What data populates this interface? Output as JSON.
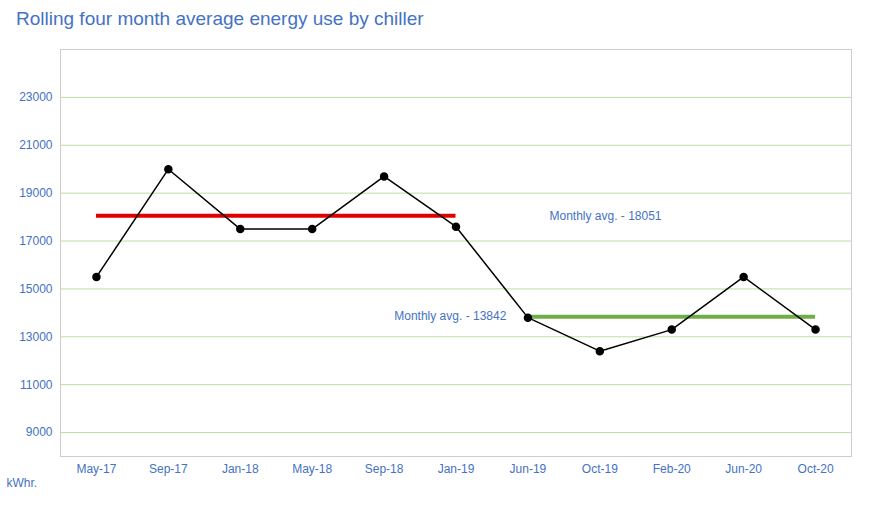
{
  "chart_data": {
    "type": "line",
    "title": "Rolling four month average energy use by chiller",
    "ylabel": "kWhr.",
    "categories": [
      "May-17",
      "Sep-17",
      "Jan-18",
      "May-18",
      "Sep-18",
      "Jan-19",
      "Jun-19",
      "Oct-19",
      "Feb-20",
      "Jun-20",
      "Oct-20"
    ],
    "values": [
      15500,
      20000,
      17500,
      17500,
      19700,
      17600,
      13800,
      12400,
      13300,
      15500,
      13300
    ],
    "color": "#000000",
    "marker": "circle",
    "reference_lines": [
      {
        "value": 18051,
        "from": "May-17",
        "to": "Jan-19",
        "color": "#e00000",
        "label": "Monthly avg. - 18051"
      },
      {
        "value": 13842,
        "from": "Jun-19",
        "to": "Oct-20",
        "color": "#70ad47",
        "label": "Monthly avg. - 13842"
      }
    ],
    "ylim": [
      8000,
      25000
    ],
    "yticks": [
      9000,
      11000,
      13000,
      15000,
      17000,
      19000,
      21000,
      23000
    ],
    "grid": true
  }
}
